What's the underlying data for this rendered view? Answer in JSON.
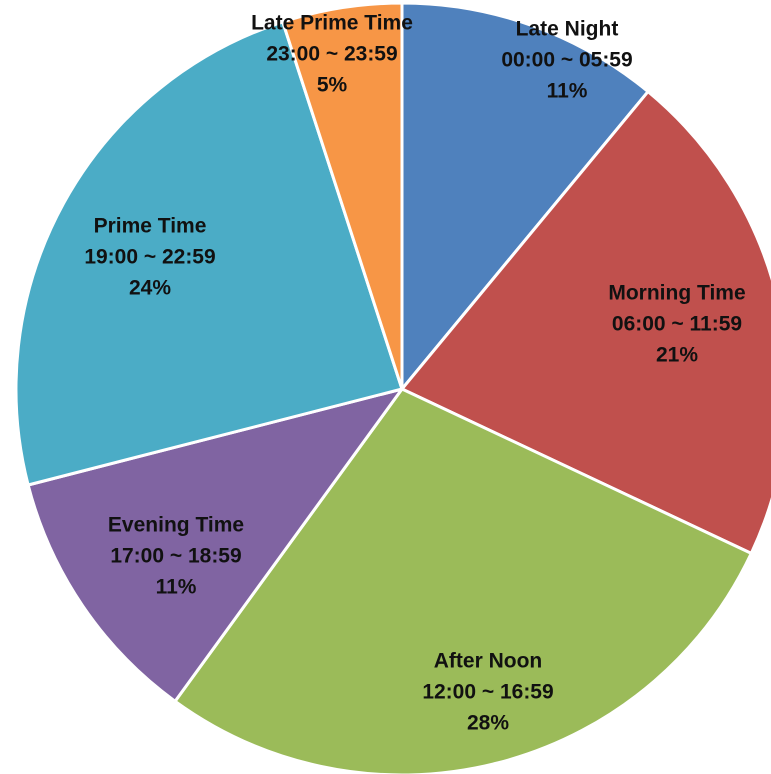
{
  "chart_data": {
    "type": "pie",
    "title": "",
    "start_angle_deg": 0,
    "direction": "clockwise",
    "slices": [
      {
        "label": "Late Night",
        "range": "00:00 ~ 05:59",
        "value": 11,
        "value_label": "11%",
        "color": "#4F81BD"
      },
      {
        "label": "Morning Time",
        "range": "06:00 ~ 11:59",
        "value": 21,
        "value_label": "21%",
        "color": "#C0504D"
      },
      {
        "label": "After Noon",
        "range": "12:00 ~ 16:59",
        "value": 28,
        "value_label": "28%",
        "color": "#9BBB59"
      },
      {
        "label": "Evening Time",
        "range": "17:00 ~ 18:59",
        "value": 11,
        "value_label": "11%",
        "color": "#8064A2"
      },
      {
        "label": "Prime Time",
        "range": "19:00 ~ 22:59",
        "value": 24,
        "value_label": "24%",
        "color": "#4BACC6"
      },
      {
        "label": "Late Prime Time",
        "range": "23:00 ~ 23:59",
        "value": 5,
        "value_label": "5%",
        "color": "#F79646"
      }
    ],
    "legend": "none",
    "slice_border_color": "#FFFFFF"
  }
}
